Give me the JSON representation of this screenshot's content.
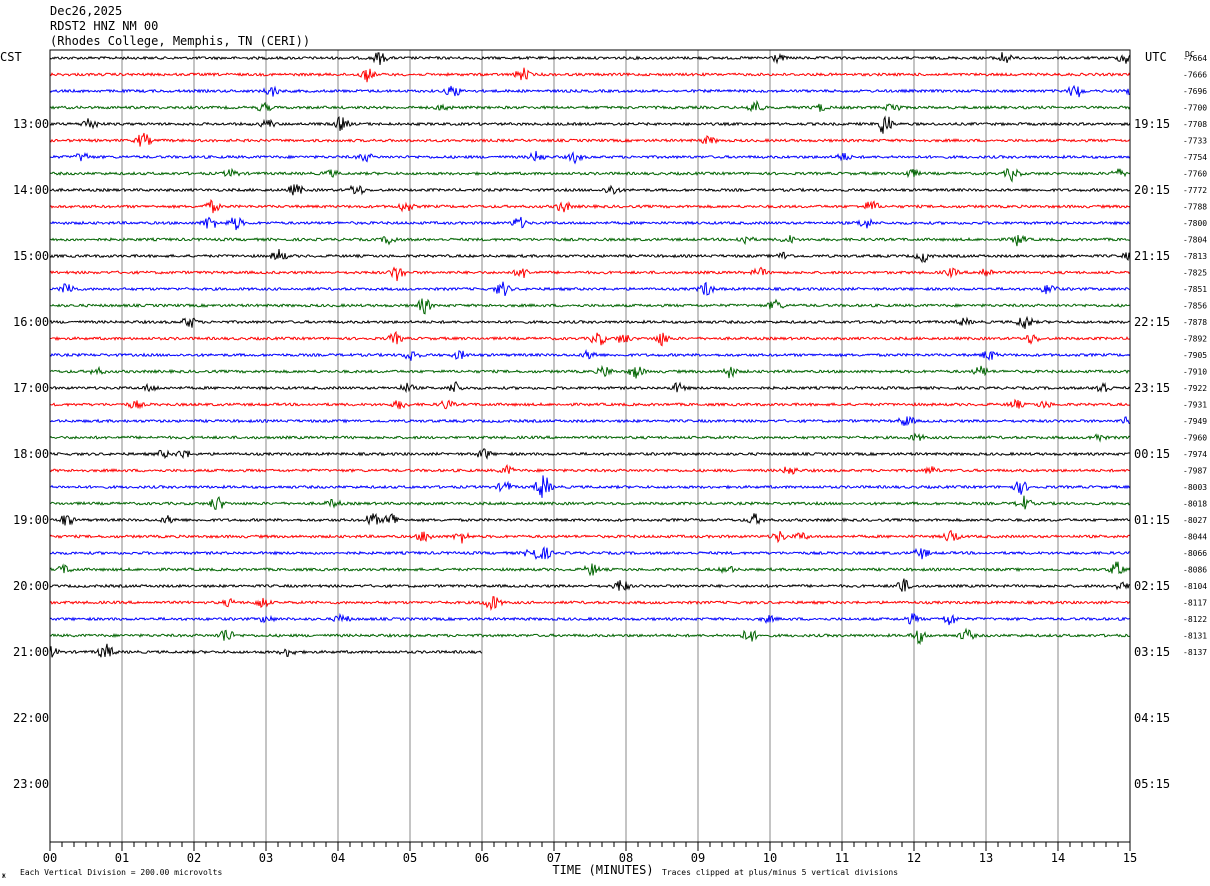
{
  "header": {
    "date": "Dec26,2025",
    "station": "RDST2 HNZ NM 00",
    "location": "(Rhodes College, Memphis, TN (CERI))"
  },
  "left_tz": "CST",
  "right_tz": "UTC",
  "dc_label": "DC",
  "footer": {
    "scale_note": "Each Vertical Division =  200.00 microvolts",
    "xlabel": "TIME (MINUTES)",
    "clip_note": "Traces clipped at plus/minus 5 vertical divisions",
    "corner_mark": "Ж"
  },
  "chart_data": {
    "type": "line",
    "title": "RDST2 HNZ NM 00",
    "xlabel": "TIME (MINUTES)",
    "x_ticks": [
      "00",
      "01",
      "02",
      "03",
      "04",
      "05",
      "06",
      "07",
      "08",
      "09",
      "10",
      "11",
      "12",
      "13",
      "14",
      "15"
    ],
    "xlim": [
      0,
      15
    ],
    "rows_per_hour": 4,
    "left_hour_labels": [
      "13:00",
      "14:00",
      "15:00",
      "16:00",
      "17:00",
      "18:00",
      "19:00",
      "20:00",
      "21:00",
      "22:00",
      "23:00"
    ],
    "right_hour_labels": [
      "19:15",
      "20:15",
      "21:15",
      "22:15",
      "23:15",
      "00:15",
      "01:15",
      "02:15",
      "03:15",
      "04:15",
      "05:15"
    ],
    "trace_colors": [
      "#000000",
      "#ff0000",
      "#0000ff",
      "#006400"
    ],
    "dc_offsets": [
      "-7664",
      "-7666",
      "-7696",
      "-7700",
      "-7708",
      "-7733",
      "-7754",
      "-7760",
      "-7772",
      "-7788",
      "-7800",
      "-7804",
      "-7813",
      "-7825",
      "-7851",
      "-7856",
      "-7878",
      "-7892",
      "-7905",
      "-7910",
      "-7922",
      "-7931",
      "-7949",
      "-7960",
      "-7974",
      "-7987",
      "-8003",
      "-8018",
      "-8027",
      "-8044",
      "-8066",
      "-8086",
      "-8104",
      "-8117",
      "-8122",
      "-8131",
      "-8137"
    ],
    "last_trace_end_minute": 6.0,
    "clip_divisions": 5,
    "microvolts_per_division": 200.0
  }
}
